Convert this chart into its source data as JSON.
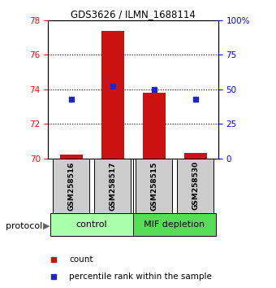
{
  "title": "GDS3626 / ILMN_1688114",
  "samples": [
    "GSM258516",
    "GSM258517",
    "GSM258515",
    "GSM258530"
  ],
  "bar_values": [
    70.2,
    77.4,
    73.8,
    70.3
  ],
  "bar_base": 70.0,
  "percentile_values": [
    43,
    52,
    50,
    43
  ],
  "ylim_left": [
    70,
    78
  ],
  "ylim_right": [
    0,
    100
  ],
  "yticks_left": [
    70,
    72,
    74,
    76,
    78
  ],
  "yticks_right": [
    0,
    25,
    50,
    75,
    100
  ],
  "ytick_labels_right": [
    "0",
    "25",
    "50",
    "75",
    "100%"
  ],
  "bar_color": "#cc1111",
  "dot_color": "#2222cc",
  "bar_width": 0.55,
  "group_colors": [
    "#aaffaa",
    "#55dd55"
  ],
  "group_labels": [
    "control",
    "MIF depletion"
  ],
  "sample_box_color": "#cccccc",
  "legend_count_color": "#cc1111",
  "legend_dot_color": "#2222cc",
  "grid_yticks": [
    72,
    74,
    76
  ]
}
